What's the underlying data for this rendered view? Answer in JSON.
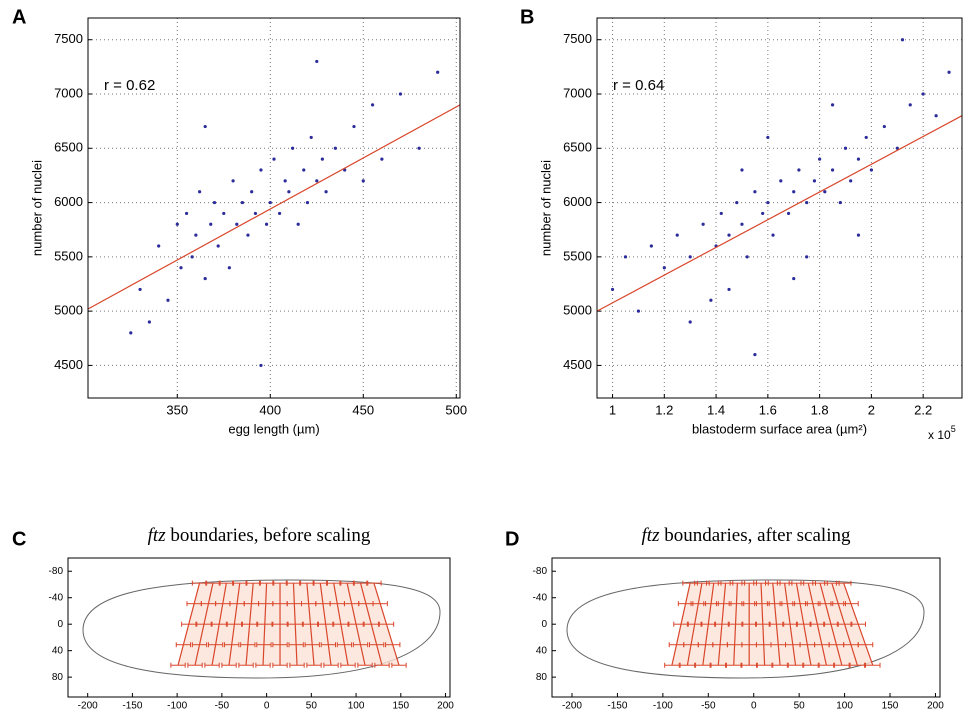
{
  "chart_data": [
    {
      "type": "scatter",
      "panel": "A",
      "xlabel": "egg length (µm)",
      "ylabel": "number of nuclei",
      "annotation": "r = 0.62",
      "xlim": [
        302,
        502
      ],
      "ylim": [
        4200,
        7700
      ],
      "xticks": [
        350,
        400,
        450,
        500
      ],
      "yticks": [
        4500,
        5000,
        5500,
        6000,
        6500,
        7000,
        7500
      ],
      "grid": true,
      "color": "#2b2b9a",
      "x": [
        330,
        340,
        345,
        350,
        352,
        355,
        358,
        360,
        362,
        365,
        368,
        370,
        372,
        375,
        378,
        380,
        382,
        385,
        388,
        390,
        392,
        395,
        398,
        400,
        402,
        405,
        408,
        410,
        412,
        415,
        418,
        420,
        422,
        425,
        428,
        430,
        435,
        440,
        445,
        450,
        455,
        460,
        470,
        480,
        490,
        325,
        335,
        365,
        395,
        425
      ],
      "y": [
        5200,
        5600,
        5100,
        5800,
        5400,
        5900,
        5500,
        5700,
        6100,
        5300,
        5800,
        6000,
        5600,
        5900,
        5400,
        6200,
        5800,
        6000,
        5700,
        6100,
        5900,
        6300,
        5800,
        6000,
        6400,
        5900,
        6200,
        6100,
        6500,
        5800,
        6300,
        6000,
        6600,
        6200,
        6400,
        6100,
        6500,
        6300,
        6700,
        6200,
        6900,
        6400,
        7000,
        6500,
        7200,
        4800,
        4900,
        6700,
        4500,
        7300
      ],
      "fit": {
        "x": [
          302,
          502
        ],
        "y": [
          5020,
          6900
        ],
        "color": "#d9462b"
      }
    },
    {
      "type": "scatter",
      "panel": "B",
      "xlabel": "blastoderm surface area (µm²)",
      "ylabel": "number of nuclei",
      "annotation": "r = 0.64",
      "multiplier_base": "x 10",
      "multiplier_exponent": 5,
      "xlim": [
        0.94,
        2.35
      ],
      "ylim": [
        4200,
        7700
      ],
      "xticks": [
        1,
        1.2,
        1.4,
        1.6,
        1.8,
        2,
        2.2
      ],
      "yticks": [
        4500,
        5000,
        5500,
        6000,
        6500,
        7000,
        7500
      ],
      "grid": true,
      "color": "#2b2b9a",
      "x": [
        1.0,
        1.05,
        1.1,
        1.15,
        1.2,
        1.25,
        1.3,
        1.35,
        1.4,
        1.42,
        1.45,
        1.48,
        1.5,
        1.52,
        1.55,
        1.58,
        1.6,
        1.62,
        1.65,
        1.68,
        1.7,
        1.72,
        1.75,
        1.78,
        1.8,
        1.82,
        1.85,
        1.88,
        1.9,
        1.92,
        1.95,
        1.98,
        2.0,
        2.05,
        2.1,
        2.15,
        2.2,
        2.25,
        2.3,
        1.3,
        1.45,
        1.55,
        1.6,
        1.75,
        1.85,
        1.5,
        1.7,
        1.95,
        2.12,
        1.38
      ],
      "y": [
        5200,
        5500,
        5000,
        5600,
        5400,
        5700,
        5500,
        5800,
        5600,
        5900,
        5700,
        6000,
        5800,
        5500,
        6100,
        5900,
        6000,
        5700,
        6200,
        5900,
        6100,
        6300,
        6000,
        6200,
        6400,
        6100,
        6300,
        6000,
        6500,
        6200,
        6400,
        6600,
        6300,
        6700,
        6500,
        6900,
        7000,
        6800,
        7200,
        4900,
        5200,
        4600,
        6600,
        5500,
        6900,
        6300,
        5300,
        5700,
        7500,
        5100
      ],
      "fit": {
        "x": [
          0.94,
          2.35
        ],
        "y": [
          5000,
          6800
        ],
        "color": "#d9462b"
      }
    },
    {
      "type": "line",
      "panel": "C",
      "title_gene": "ftz",
      "title": "boundaries, before scaling",
      "xlim": [
        -222,
        205
      ],
      "ylim": [
        -100,
        110
      ],
      "y_inverted": true,
      "grid": false,
      "xticks": [
        -200,
        -150,
        -100,
        -50,
        0,
        50,
        100,
        150,
        200
      ],
      "yticks": [
        -80,
        -40,
        0,
        40,
        80
      ],
      "color": "#d9462b",
      "fill": "#fbe2d6",
      "xerr": 8,
      "y_levels": [
        -62,
        -31,
        0,
        31,
        62
      ],
      "boundaries": [
        {
          "x": [
            -75,
            -81,
            -87,
            -93,
            -99
          ]
        },
        {
          "x": [
            -60,
            -65,
            -70,
            -75,
            -80
          ]
        },
        {
          "x": [
            -45,
            -49,
            -53,
            -57,
            -61
          ]
        },
        {
          "x": [
            -30,
            -33,
            -36,
            -39,
            -42
          ]
        },
        {
          "x": [
            -15,
            -17,
            -19,
            -21,
            -23
          ]
        },
        {
          "x": [
            0,
            -1,
            -2,
            -3,
            -4
          ]
        },
        {
          "x": [
            15,
            15,
            15,
            15,
            15
          ]
        },
        {
          "x": [
            30,
            31,
            32,
            33,
            34
          ]
        },
        {
          "x": [
            45,
            47,
            49,
            51,
            53
          ]
        },
        {
          "x": [
            60,
            63,
            66,
            69,
            72
          ]
        },
        {
          "x": [
            75,
            79,
            83,
            87,
            91
          ]
        },
        {
          "x": [
            90,
            95,
            100,
            105,
            110
          ]
        },
        {
          "x": [
            105,
            111,
            117,
            123,
            129
          ]
        },
        {
          "x": [
            120,
            127,
            134,
            141,
            148
          ]
        }
      ]
    },
    {
      "type": "line",
      "panel": "D",
      "title_gene": "ftz",
      "title": "boundaries, after scaling",
      "xlim": [
        -222,
        205
      ],
      "ylim": [
        -100,
        110
      ],
      "y_inverted": true,
      "grid": false,
      "xticks": [
        -200,
        -150,
        -100,
        -50,
        0,
        50,
        100,
        150,
        200
      ],
      "yticks": [
        -80,
        -40,
        0,
        40,
        80
      ],
      "color": "#d9462b",
      "fill": "#fbe2d6",
      "xerr": 8,
      "y_levels": [
        -62,
        -31,
        0,
        31,
        62
      ],
      "boundaries": [
        {
          "x": [
            -70,
            -75,
            -80,
            -85,
            -90
          ]
        },
        {
          "x": [
            -57,
            -61,
            -65,
            -69,
            -73
          ]
        },
        {
          "x": [
            -44,
            -47,
            -50,
            -53,
            -56
          ]
        },
        {
          "x": [
            -31,
            -33,
            -35,
            -37,
            -39
          ]
        },
        {
          "x": [
            -18,
            -19,
            -20,
            -21,
            -22
          ]
        },
        {
          "x": [
            -5,
            -5,
            -5,
            -5,
            -5
          ]
        },
        {
          "x": [
            8,
            9,
            10,
            11,
            12
          ]
        },
        {
          "x": [
            21,
            23,
            25,
            27,
            29
          ]
        },
        {
          "x": [
            34,
            37,
            40,
            43,
            46
          ]
        },
        {
          "x": [
            47,
            51,
            55,
            59,
            63
          ]
        },
        {
          "x": [
            60,
            65,
            70,
            75,
            80
          ]
        },
        {
          "x": [
            73,
            79,
            85,
            91,
            97
          ]
        },
        {
          "x": [
            86,
            93,
            100,
            107,
            114
          ]
        },
        {
          "x": [
            99,
            107,
            115,
            123,
            131
          ]
        }
      ]
    }
  ]
}
